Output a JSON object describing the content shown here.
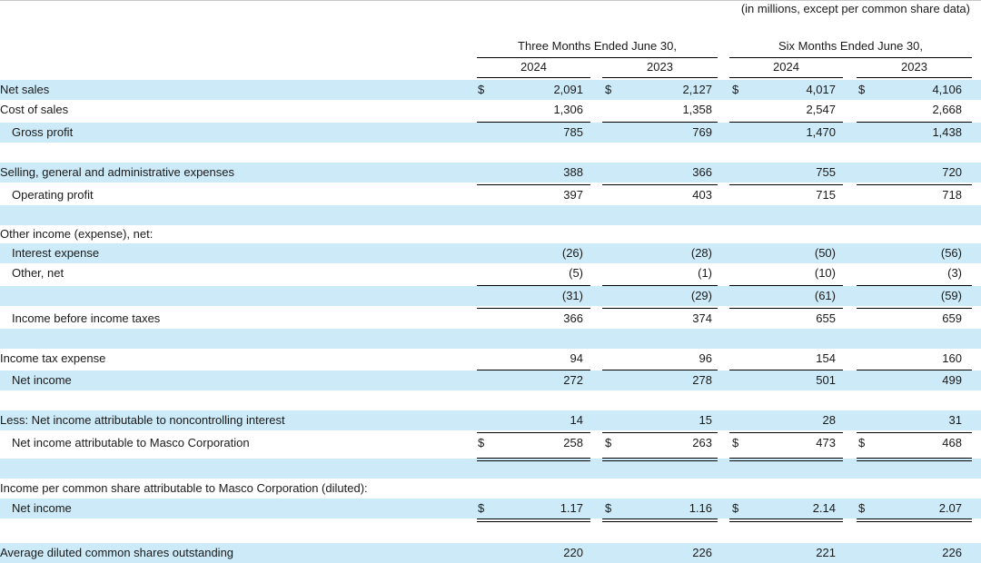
{
  "header": {
    "units_note": "(in millions, except per common share data)",
    "three_months": "Three Months Ended June 30,",
    "six_months": "Six Months Ended June 30,",
    "years": [
      "2024",
      "2023",
      "2024",
      "2023"
    ]
  },
  "currency": "$",
  "rows": [
    {
      "label": "Net sales",
      "values": [
        "2,091",
        "2,127",
        "4,017",
        "4,106"
      ]
    },
    {
      "label": "Cost of sales",
      "values": [
        "1,306",
        "1,358",
        "2,547",
        "2,668"
      ]
    },
    {
      "label": "Gross profit",
      "values": [
        "785",
        "769",
        "1,470",
        "1,438"
      ]
    },
    {
      "label": "",
      "values": [
        "",
        "",
        "",
        ""
      ]
    },
    {
      "label": "Selling, general and administrative expenses",
      "values": [
        "388",
        "366",
        "755",
        "720"
      ]
    },
    {
      "label": "Operating profit",
      "values": [
        "397",
        "403",
        "715",
        "718"
      ]
    },
    {
      "label": "",
      "values": [
        "",
        "",
        "",
        ""
      ]
    },
    {
      "label": "Other income (expense), net:",
      "values": [
        "",
        "",
        "",
        ""
      ]
    },
    {
      "label": "Interest expense",
      "values": [
        "(26)",
        "(28)",
        "(50)",
        "(56)"
      ]
    },
    {
      "label": "Other, net",
      "values": [
        "(5)",
        "(1)",
        "(10)",
        "(3)"
      ]
    },
    {
      "label": "",
      "values": [
        "(31)",
        "(29)",
        "(61)",
        "(59)"
      ]
    },
    {
      "label": "Income before income taxes",
      "values": [
        "366",
        "374",
        "655",
        "659"
      ]
    },
    {
      "label": "",
      "values": [
        "",
        "",
        "",
        ""
      ]
    },
    {
      "label": "Income tax expense",
      "values": [
        "94",
        "96",
        "154",
        "160"
      ]
    },
    {
      "label": "Net income",
      "values": [
        "272",
        "278",
        "501",
        "499"
      ]
    },
    {
      "label": "",
      "values": [
        "",
        "",
        "",
        ""
      ]
    },
    {
      "label": "Less: Net income attributable to noncontrolling interest",
      "values": [
        "14",
        "15",
        "28",
        "31"
      ]
    },
    {
      "label": "Net income attributable to Masco Corporation",
      "values": [
        "258",
        "263",
        "473",
        "468"
      ]
    },
    {
      "label": "",
      "values": [
        "",
        "",
        "",
        ""
      ]
    },
    {
      "label": "Income per common share attributable to Masco Corporation (diluted):",
      "values": [
        "",
        "",
        "",
        ""
      ]
    },
    {
      "label": "Net income",
      "values": [
        "1.17",
        "1.16",
        "2.14",
        "2.07"
      ]
    },
    {
      "label": "",
      "values": [
        "",
        "",
        "",
        ""
      ]
    },
    {
      "label": "Average diluted common shares outstanding",
      "values": [
        "220",
        "226",
        "221",
        "226"
      ]
    }
  ]
}
